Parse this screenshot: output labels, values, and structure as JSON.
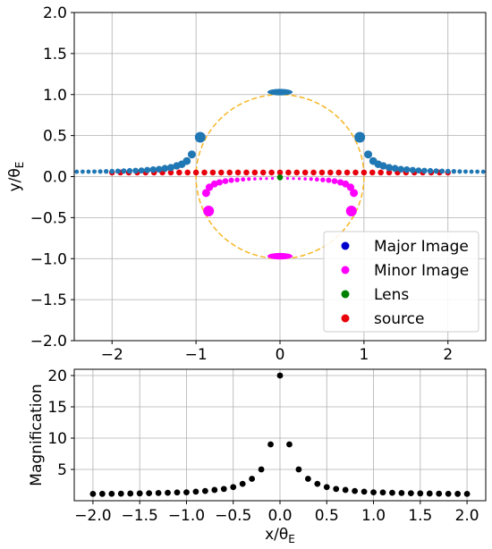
{
  "chart_data": [
    {
      "type": "scatter",
      "xlabel_text": "",
      "ylabel": "y/θ_E",
      "ylabel_main": "y/θ",
      "ylabel_sub": "E",
      "xlim": [
        -2.45,
        2.45
      ],
      "ylim": [
        -2.0,
        2.0
      ],
      "xticks": [
        -2,
        -1,
        0,
        1,
        2
      ],
      "yticks": [
        -2.0,
        -1.5,
        -1.0,
        -0.5,
        0.0,
        0.5,
        1.0,
        1.5,
        2.0
      ],
      "xtick_labels": [
        "−2",
        "−1",
        "0",
        "1",
        "2"
      ],
      "ytick_labels": [
        "−2.0",
        "−1.5",
        "−1.0",
        "−0.5",
        "0.0",
        "0.5",
        "1.0",
        "1.5",
        "2.0"
      ],
      "grid": true,
      "einstein_ring": {
        "radius": 1.0,
        "color": "#f5b623",
        "style": "dashed"
      },
      "legend": {
        "placement": "lower-right",
        "entries": [
          {
            "label": "Major Image",
            "color": "#0000cc"
          },
          {
            "label": "Minor Image",
            "color": "#ff00ff"
          },
          {
            "label": "Lens",
            "color": "#008000"
          },
          {
            "label": "source",
            "color": "#e8000b"
          }
        ]
      },
      "series": [
        {
          "color": "#1f77b4",
          "points_right": [
            [
              1.05,
              0.27
            ],
            [
              1.11,
              0.19
            ],
            [
              1.17,
              0.15
            ],
            [
              1.23,
              0.13
            ],
            [
              1.3,
              0.11
            ],
            [
              1.37,
              0.1
            ],
            [
              1.44,
              0.09
            ],
            [
              1.51,
              0.085
            ],
            [
              1.58,
              0.08
            ],
            [
              1.65,
              0.075
            ],
            [
              1.72,
              0.072
            ],
            [
              1.79,
              0.07
            ],
            [
              1.86,
              0.068
            ],
            [
              1.93,
              0.066
            ],
            [
              2.0,
              0.064
            ],
            [
              2.07,
              0.063
            ],
            [
              2.14,
              0.062
            ],
            [
              2.21,
              0.061
            ],
            [
              2.28,
              0.06
            ],
            [
              2.35,
              0.06
            ],
            [
              2.42,
              0.059
            ]
          ],
          "large_points": [
            [
              -0.95,
              0.48
            ],
            [
              0.95,
              0.48
            ]
          ],
          "top_image": {
            "x": 0.0,
            "y": 1.03,
            "width": 0.3,
            "height": 0.08
          }
        },
        {
          "color": "#ff00ff",
          "arc_points": [
            [
              -0.88,
              -0.2
            ],
            [
              -0.84,
              -0.13
            ],
            [
              -0.78,
              -0.09
            ],
            [
              -0.72,
              -0.07
            ],
            [
              -0.65,
              -0.055
            ],
            [
              -0.58,
              -0.045
            ],
            [
              -0.51,
              -0.04
            ],
            [
              -0.44,
              -0.035
            ],
            [
              -0.37,
              -0.03
            ],
            [
              -0.3,
              -0.028
            ],
            [
              -0.23,
              -0.026
            ],
            [
              -0.16,
              -0.024
            ],
            [
              -0.09,
              -0.022
            ]
          ],
          "large_points": [
            [
              -0.85,
              -0.42
            ],
            [
              0.85,
              -0.42
            ]
          ],
          "bottom_image": {
            "x": 0.0,
            "y": -0.97,
            "width": 0.3,
            "height": 0.08
          }
        },
        {
          "color": "#008000",
          "points": [
            [
              0.0,
              -0.01
            ]
          ]
        },
        {
          "color": "#e8000b",
          "y": 0.05,
          "x_start": -2.0,
          "x_end": 2.0,
          "count": 41
        }
      ]
    },
    {
      "type": "scatter",
      "xlabel": "x/θ_E",
      "xlabel_main": "x/θ",
      "xlabel_sub": "E",
      "ylabel": "Magnification",
      "xlim": [
        -2.2,
        2.2
      ],
      "ylim": [
        0,
        21
      ],
      "xticks": [
        -2.0,
        -1.5,
        -1.0,
        -0.5,
        0.0,
        0.5,
        1.0,
        1.5,
        2.0
      ],
      "yticks": [
        5,
        10,
        15,
        20
      ],
      "xtick_labels": [
        "−2.0",
        "−1.5",
        "−1.0",
        "−0.5",
        "0.0",
        "0.5",
        "1.0",
        "1.5",
        "2.0"
      ],
      "ytick_labels": [
        "5",
        "10",
        "15",
        "20"
      ],
      "grid": true,
      "series": [
        {
          "color": "#000000",
          "x": [
            -2.0,
            -1.9,
            -1.8,
            -1.7,
            -1.6,
            -1.5,
            -1.4,
            -1.3,
            -1.2,
            -1.1,
            -1.0,
            -0.9,
            -0.8,
            -0.7,
            -0.6,
            -0.5,
            -0.4,
            -0.3,
            -0.2,
            -0.1,
            0.0,
            0.1,
            0.2,
            0.3,
            0.4,
            0.5,
            0.6,
            0.7,
            0.8,
            0.9,
            1.0,
            1.1,
            1.2,
            1.3,
            1.4,
            1.5,
            1.6,
            1.7,
            1.8,
            1.9,
            2.0
          ],
          "y": [
            1.09,
            1.1,
            1.11,
            1.13,
            1.15,
            1.17,
            1.2,
            1.23,
            1.27,
            1.32,
            1.34,
            1.45,
            1.55,
            1.72,
            1.88,
            2.18,
            2.7,
            3.5,
            5.0,
            9.0,
            20.0,
            9.0,
            5.0,
            3.5,
            2.7,
            2.18,
            1.88,
            1.72,
            1.55,
            1.45,
            1.34,
            1.32,
            1.27,
            1.23,
            1.2,
            1.17,
            1.15,
            1.13,
            1.11,
            1.1,
            1.09
          ]
        }
      ]
    }
  ]
}
